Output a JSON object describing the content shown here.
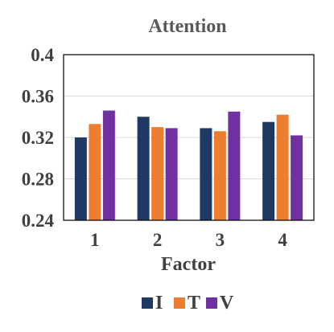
{
  "chart_data": {
    "type": "bar",
    "title": "Attention",
    "xlabel": "Factor",
    "ylabel": "",
    "categories": [
      "1",
      "2",
      "3",
      "4"
    ],
    "ylim": [
      0.24,
      0.4
    ],
    "yticks": [
      "0.4",
      "0.36",
      "0.32",
      "0.28",
      "0.24"
    ],
    "ytick_values": [
      0.4,
      0.36,
      0.32,
      0.28,
      0.24
    ],
    "grid": true,
    "legend_position": "bottom",
    "series": [
      {
        "name": "I",
        "color": "#1f3864",
        "values": [
          0.32,
          0.34,
          0.329,
          0.335
        ]
      },
      {
        "name": "T",
        "color": "#ed7d31",
        "values": [
          0.333,
          0.33,
          0.326,
          0.342
        ]
      },
      {
        "name": "V",
        "color": "#7030a0",
        "values": [
          0.346,
          0.329,
          0.345,
          0.322
        ]
      }
    ]
  }
}
